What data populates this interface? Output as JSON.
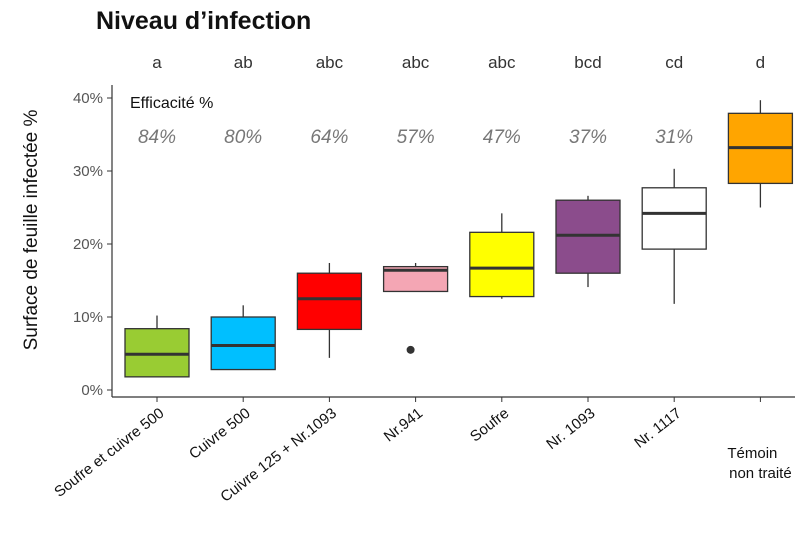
{
  "chart_data": {
    "type": "boxplot",
    "title": "Niveau d’infection",
    "ylabel": "Surface de feuille infectée %",
    "y_unit": "%",
    "ylim": [
      0,
      41
    ],
    "yticks": [
      "0%",
      "10%",
      "20%",
      "30%",
      "40%"
    ],
    "ytick_values": [
      0,
      10,
      20,
      30,
      40
    ],
    "efficacy_label": "Efficacité %",
    "categories": [
      "Soufre et cuivre 500",
      "Cuivre 500",
      "Cuivre 125 + Nr.1093",
      "Nr.941",
      "Soufre",
      "Nr. 1093",
      "Nr. 1117",
      "Témoin non traité"
    ],
    "category_lines": [
      [
        "Soufre et cuivre 500"
      ],
      [
        "Cuivre 500"
      ],
      [
        "Cuivre 125 + Nr.1093"
      ],
      [
        "Nr.941"
      ],
      [
        "Soufre"
      ],
      [
        "Nr. 1093"
      ],
      [
        "Nr. 1117"
      ],
      [
        "Témoin",
        "non traité"
      ]
    ],
    "significance_letters": [
      "a",
      "ab",
      "abc",
      "abc",
      "abc",
      "bcd",
      "cd",
      "d"
    ],
    "efficacy": [
      "84%",
      "80%",
      "64%",
      "57%",
      "47%",
      "37%",
      "31%",
      ""
    ],
    "boxes": [
      {
        "whisker_low": 1.8,
        "q1": 1.8,
        "median": 4.9,
        "q3": 8.4,
        "whisker_high": 10.2,
        "outliers": []
      },
      {
        "whisker_low": 2.8,
        "q1": 2.8,
        "median": 6.1,
        "q3": 10.0,
        "whisker_high": 11.6,
        "outliers": []
      },
      {
        "whisker_low": 4.4,
        "q1": 8.3,
        "median": 12.5,
        "q3": 16.0,
        "whisker_high": 17.4,
        "outliers": []
      },
      {
        "whisker_low": 13.5,
        "q1": 13.5,
        "median": 16.4,
        "q3": 16.9,
        "whisker_high": 17.4,
        "outliers": [
          5.5
        ]
      },
      {
        "whisker_low": 12.5,
        "q1": 12.8,
        "median": 16.7,
        "q3": 21.6,
        "whisker_high": 24.2,
        "outliers": []
      },
      {
        "whisker_low": 14.1,
        "q1": 16.0,
        "median": 21.2,
        "q3": 26.0,
        "whisker_high": 26.6,
        "outliers": []
      },
      {
        "whisker_low": 11.8,
        "q1": 19.3,
        "median": 24.2,
        "q3": 27.7,
        "whisker_high": 30.3,
        "outliers": []
      },
      {
        "whisker_low": 25.0,
        "q1": 28.3,
        "median": 33.2,
        "q3": 37.9,
        "whisker_high": 39.7,
        "outliers": []
      }
    ],
    "colors": [
      "#99cc33",
      "#00bfff",
      "#ff0000",
      "#f4a6b4",
      "#ffff00",
      "#8b4c8c",
      "#ffffff",
      "#ffa500"
    ],
    "grid": false,
    "legend": "none"
  }
}
